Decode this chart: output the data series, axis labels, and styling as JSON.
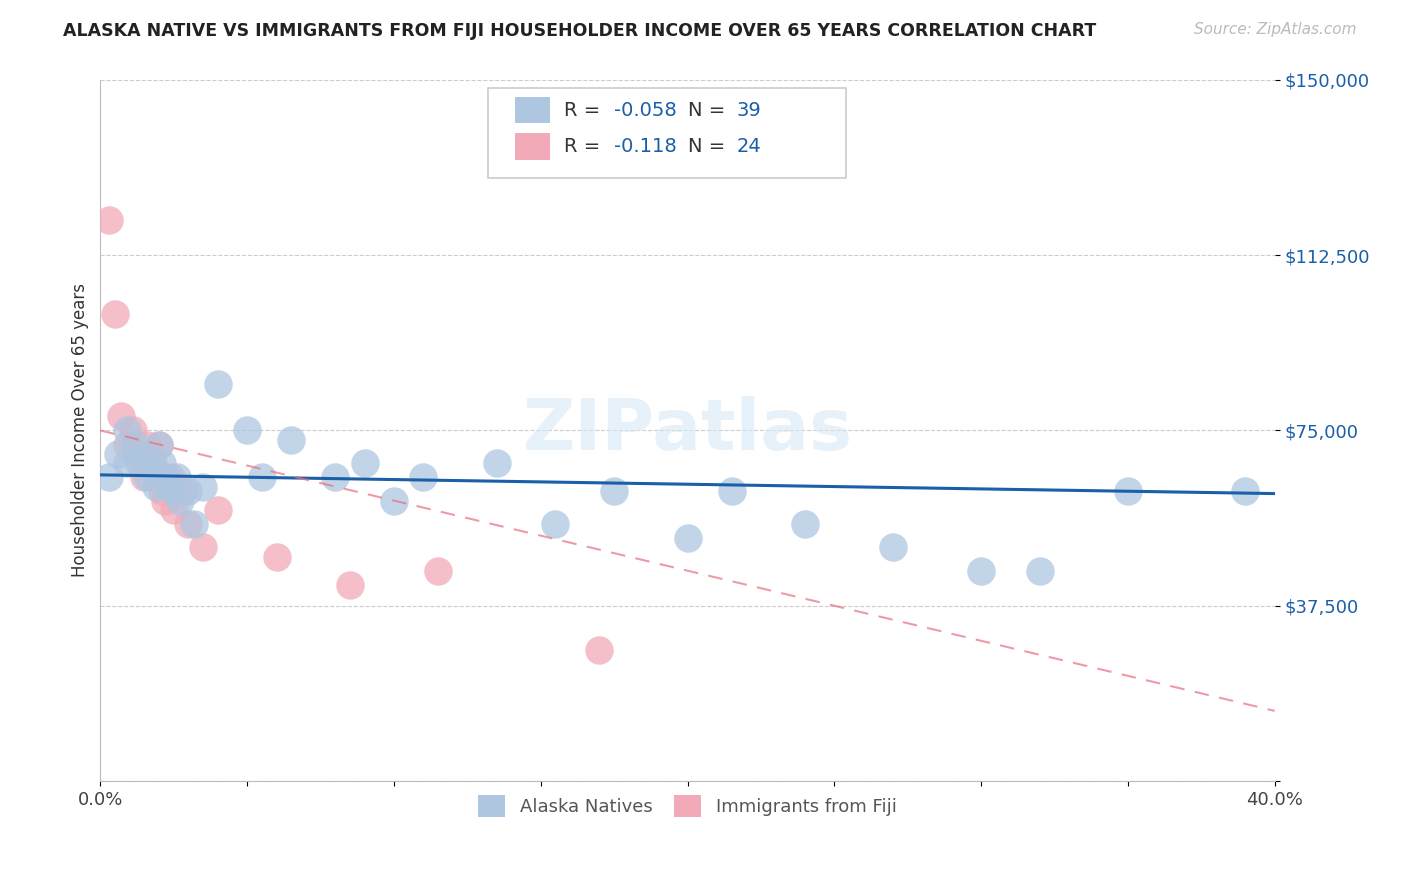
{
  "title": "ALASKA NATIVE VS IMMIGRANTS FROM FIJI HOUSEHOLDER INCOME OVER 65 YEARS CORRELATION CHART",
  "source": "Source: ZipAtlas.com",
  "ylabel": "Householder Income Over 65 years",
  "legend_label1": "Alaska Natives",
  "legend_label2": "Immigrants from Fiji",
  "r1": -0.058,
  "n1": 39,
  "r2": -0.118,
  "n2": 24,
  "color_blue": "#aec6e0",
  "color_pink": "#f2aab8",
  "line_blue": "#1a5fa8",
  "line_pink": "#e87080",
  "watermark": "ZIPatlas",
  "xmin": 0.0,
  "xmax": 0.4,
  "ymin": 0,
  "ymax": 150000,
  "yticks": [
    0,
    37500,
    75000,
    112500,
    150000
  ],
  "ytick_labels": [
    "",
    "$37,500",
    "$75,000",
    "$112,500",
    "$150,000"
  ],
  "alaska_x": [
    0.003,
    0.006,
    0.009,
    0.009,
    0.012,
    0.013,
    0.015,
    0.016,
    0.018,
    0.019,
    0.02,
    0.021,
    0.022,
    0.023,
    0.025,
    0.026,
    0.027,
    0.03,
    0.032,
    0.035,
    0.04,
    0.05,
    0.055,
    0.065,
    0.08,
    0.09,
    0.1,
    0.11,
    0.135,
    0.155,
    0.175,
    0.2,
    0.215,
    0.24,
    0.27,
    0.3,
    0.32,
    0.35,
    0.39
  ],
  "alaska_y": [
    65000,
    70000,
    68000,
    75000,
    72000,
    68000,
    70000,
    65000,
    67000,
    63000,
    72000,
    68000,
    65000,
    63000,
    62000,
    65000,
    60000,
    62000,
    55000,
    63000,
    85000,
    75000,
    65000,
    73000,
    65000,
    68000,
    60000,
    65000,
    68000,
    55000,
    62000,
    52000,
    62000,
    55000,
    50000,
    45000,
    45000,
    62000,
    62000
  ],
  "fiji_x": [
    0.003,
    0.005,
    0.007,
    0.009,
    0.011,
    0.012,
    0.014,
    0.015,
    0.016,
    0.018,
    0.019,
    0.02,
    0.021,
    0.022,
    0.024,
    0.025,
    0.028,
    0.03,
    0.035,
    0.04,
    0.06,
    0.085,
    0.115,
    0.17
  ],
  "fiji_y": [
    120000,
    100000,
    78000,
    72000,
    75000,
    70000,
    68000,
    65000,
    72000,
    68000,
    65000,
    72000,
    62000,
    60000,
    65000,
    58000,
    62000,
    55000,
    50000,
    58000,
    48000,
    42000,
    45000,
    28000
  ],
  "blue_line_x0": 0.0,
  "blue_line_y0": 65500,
  "blue_line_x1": 0.4,
  "blue_line_y1": 61500,
  "pink_line_x0": 0.0,
  "pink_line_y0": 75000,
  "pink_line_x1": 0.4,
  "pink_line_y1": 15000
}
